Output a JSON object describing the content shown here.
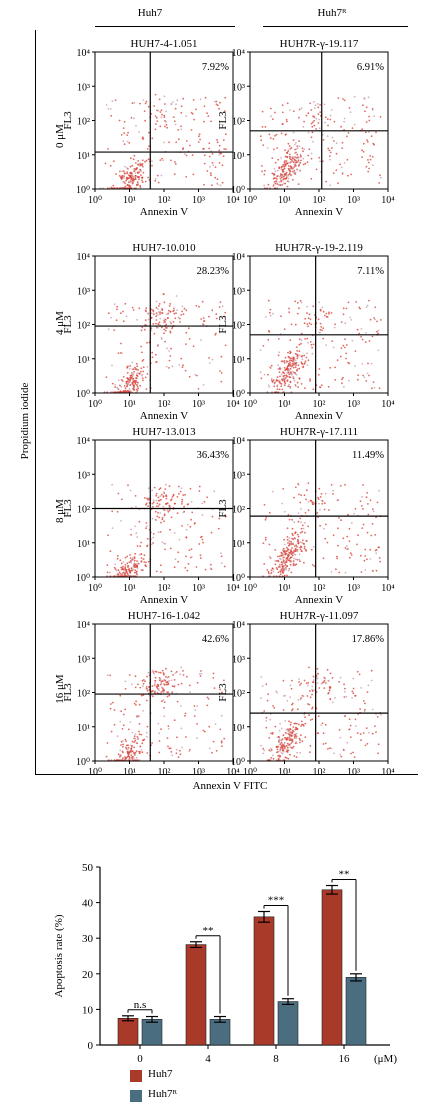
{
  "column_headers": [
    "Huh7",
    "Huh7ᴿ"
  ],
  "row_labels": [
    "0 μM",
    "4 μM",
    "8 μM",
    "16 μM"
  ],
  "outer_ylabel": "Propidium iodide",
  "outer_xlabel": "Annexin V FITC",
  "chart_data": [
    {
      "type": "scatter",
      "subtype": "flow-cytometry-quadrant-grid",
      "axis_scale": "log",
      "xlabel": "Annexin V",
      "ylabel": "FL3",
      "xlim": [
        1,
        10000
      ],
      "ylim": [
        1,
        10000
      ],
      "tick_labels": [
        "10⁰",
        "10¹",
        "10²",
        "10³",
        "10⁴"
      ],
      "panels": [
        {
          "title": "HUH7-4-1.051",
          "percent": "7.92%",
          "quad_x": 40,
          "quad_y": 12
        },
        {
          "title": "HUH7R-γ-19.117",
          "percent": "6.91%",
          "quad_x": 120,
          "quad_y": 50
        },
        {
          "title": "HUH7-10.010",
          "percent": "28.23%",
          "quad_x": 40,
          "quad_y": 90
        },
        {
          "title": "HUH7R-γ-19-2.119",
          "percent": "7.11%",
          "quad_x": 80,
          "quad_y": 50
        },
        {
          "title": "HUH7-13.013",
          "percent": "36.43%",
          "quad_x": 40,
          "quad_y": 100
        },
        {
          "title": "HUH7R-γ-17.111",
          "percent": "11.49%",
          "quad_x": 80,
          "quad_y": 60
        },
        {
          "title": "HUH7-16-1.042",
          "percent": "42.6%",
          "quad_x": 40,
          "quad_y": 90
        },
        {
          "title": "HUH7R-γ-11.097",
          "percent": "17.86%",
          "quad_x": 80,
          "quad_y": 25
        }
      ]
    },
    {
      "type": "bar",
      "categories": [
        "0",
        "4",
        "8",
        "16"
      ],
      "x_unit": "(μM)",
      "ylabel": "Apoptosis rate (%)",
      "ylim": [
        0,
        50
      ],
      "yticks": [
        0,
        10,
        20,
        30,
        40,
        50
      ],
      "series": [
        {
          "name": "Huh7",
          "color": "#a93a2a",
          "values": [
            7.5,
            28.2,
            36.0,
            43.6
          ],
          "errors": [
            0.7,
            0.8,
            1.5,
            1.2
          ]
        },
        {
          "name": "Huh7ᴿ",
          "color": "#4a6e80",
          "values": [
            7.2,
            7.2,
            12.2,
            19.0
          ],
          "errors": [
            0.8,
            0.8,
            0.8,
            1.0
          ]
        }
      ],
      "significance": [
        "n.s",
        "**",
        "***",
        "**"
      ]
    }
  ]
}
